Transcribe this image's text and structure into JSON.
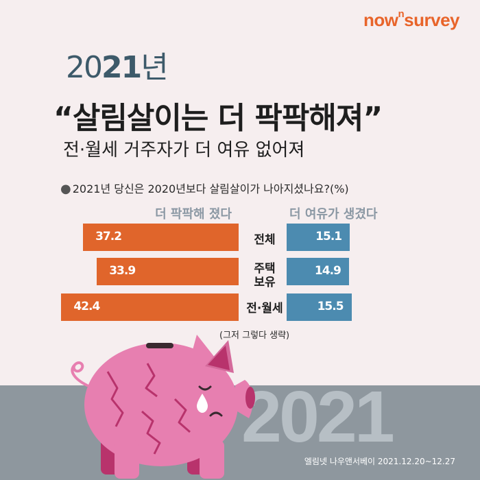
{
  "brand": {
    "name_a": "now",
    "name_sup": "n",
    "name_b": "survey",
    "color": "#e8642a"
  },
  "year_heading": {
    "part1": "20",
    "part2": "21",
    "part3": "년"
  },
  "headline": "“살림살이는 더 팍팍해져”",
  "subheadline": "전·월세 거주자가 더 여유 없어져",
  "question": "2021년 당신은 2020년보다 살림살이가 나아지셨나요?(%)",
  "chart_data": {
    "type": "bar",
    "layout": "diverging-horizontal",
    "categories": [
      "전체",
      "주택 보유",
      "전·월세"
    ],
    "series": [
      {
        "name": "더 팍팍해 졌다",
        "values": [
          37.2,
          33.9,
          42.4
        ],
        "color": "#e0652b"
      },
      {
        "name": "더 여유가 생겼다",
        "values": [
          15.1,
          14.9,
          15.5
        ],
        "color": "#4c8bb0"
      }
    ],
    "note": "(그저 그렇다 생략)"
  },
  "category_labels": {
    "c0": "전체",
    "c1a": "주택",
    "c1b": "보유",
    "c2": "전·월세"
  },
  "background_year": "2021",
  "footer": "엘림넷 나우앤서베이 2021.12.20~12.27",
  "colors": {
    "background": "#f6eeef",
    "band": "#8e979e",
    "pig": "#e77fb0"
  }
}
